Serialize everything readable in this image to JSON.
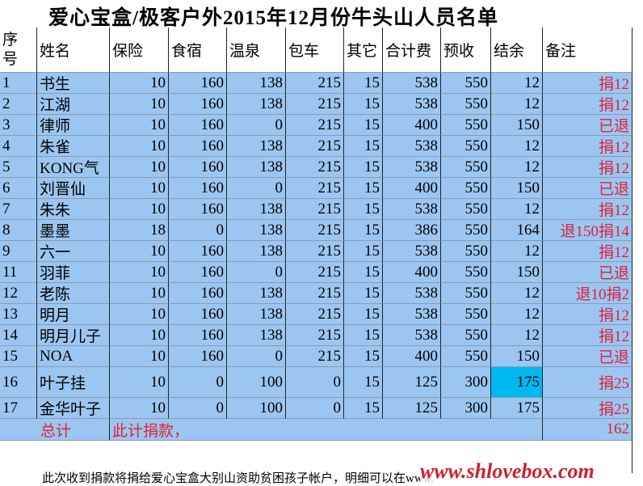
{
  "title": "爱心宝盒/极客户外2015年12月份牛头山人员名单",
  "table": {
    "header": [
      "序号",
      "姓名",
      "保险",
      "食宿",
      "温泉",
      "包车",
      "其它",
      "合计费",
      "预收",
      "结余",
      "备注"
    ],
    "rows": [
      [
        1,
        "书生",
        10,
        160,
        138,
        215,
        15,
        538,
        550,
        12,
        "捐12"
      ],
      [
        2,
        "江湖",
        10,
        160,
        138,
        215,
        15,
        538,
        550,
        12,
        "捐12"
      ],
      [
        3,
        "律师",
        10,
        160,
        0,
        215,
        15,
        400,
        550,
        150,
        "已退"
      ],
      [
        4,
        "朱雀",
        10,
        160,
        138,
        215,
        15,
        538,
        550,
        12,
        "捐12"
      ],
      [
        5,
        "KONG气",
        10,
        160,
        138,
        215,
        15,
        538,
        550,
        12,
        "捐12"
      ],
      [
        6,
        "刘晋仙",
        10,
        160,
        0,
        215,
        15,
        400,
        550,
        150,
        "已退"
      ],
      [
        7,
        "朱朱",
        10,
        160,
        138,
        215,
        15,
        538,
        550,
        12,
        "捐12"
      ],
      [
        8,
        "墨墨",
        18,
        0,
        138,
        215,
        15,
        386,
        550,
        164,
        "退150捐14"
      ],
      [
        9,
        "六一",
        10,
        160,
        138,
        215,
        15,
        538,
        550,
        12,
        "捐12"
      ],
      [
        11,
        "羽菲",
        10,
        160,
        0,
        215,
        15,
        400,
        550,
        150,
        "已退"
      ],
      [
        12,
        "老陈",
        10,
        160,
        138,
        215,
        15,
        538,
        550,
        12,
        "退10捐2"
      ],
      [
        13,
        "明月",
        10,
        160,
        138,
        215,
        15,
        538,
        550,
        12,
        "捐12"
      ],
      [
        14,
        "明月儿子",
        10,
        160,
        138,
        215,
        15,
        538,
        550,
        12,
        "捐12"
      ],
      [
        15,
        "NOA",
        10,
        160,
        0,
        215,
        15,
        400,
        550,
        150,
        "已退"
      ],
      [
        16,
        "叶子挂",
        10,
        0,
        100,
        0,
        15,
        125,
        300,
        175,
        "捐25"
      ],
      [
        17,
        "金华叶子",
        10,
        0,
        100,
        0,
        15,
        125,
        300,
        175,
        "捐25"
      ]
    ],
    "total": {
      "label": "总计",
      "note": "此计捐款，",
      "value": 162
    }
  },
  "footer_note": "此次收到捐款将捐给爱心宝盒大别山资助贫困孩子帐户，明细可以在www.",
  "watermark": "www.shlovebox.com"
}
